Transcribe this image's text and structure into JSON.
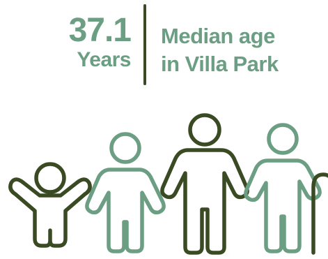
{
  "stat": {
    "value": "37.1",
    "unit": "Years"
  },
  "label": {
    "line1": "Median age",
    "line2": "in Villa Park"
  },
  "colors": {
    "accent": "#6b9e83",
    "dark": "#3a4a22",
    "divider": "#3a4a22"
  },
  "illustration": {
    "figures": [
      "child-icon",
      "teen-icon",
      "adult-icon",
      "elderly-icon",
      "cane-icon"
    ]
  }
}
